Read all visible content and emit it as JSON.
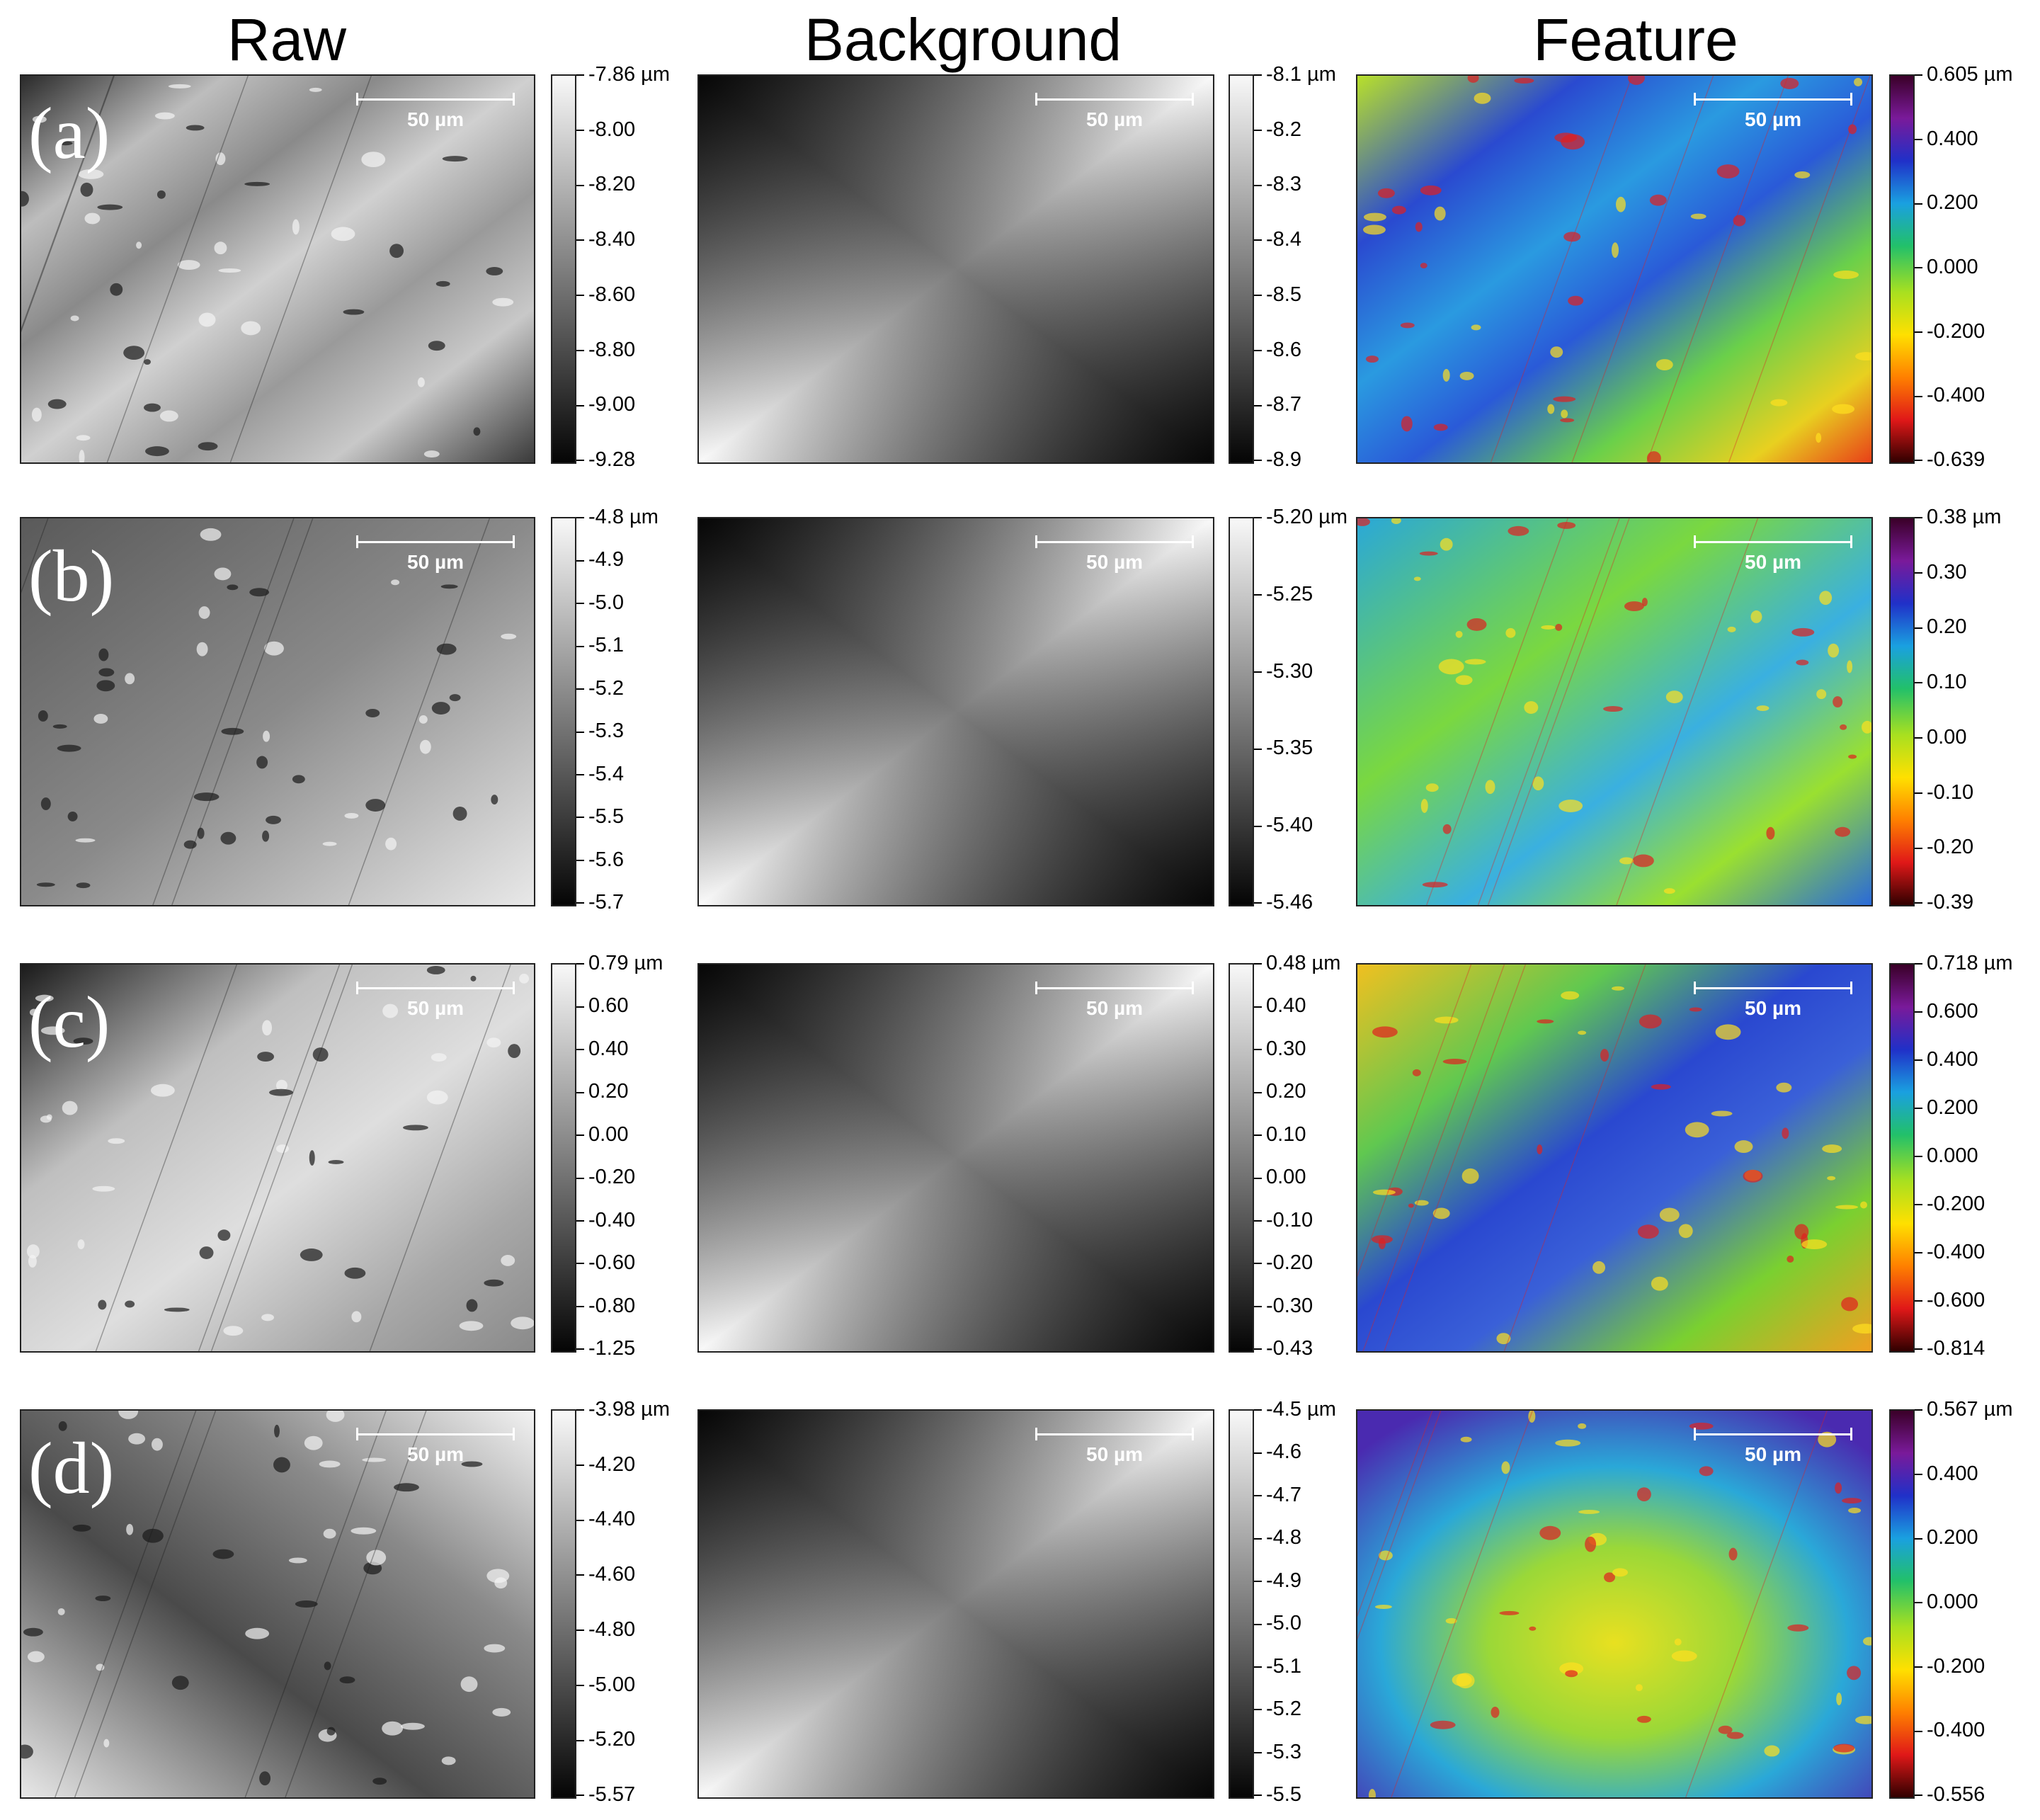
{
  "headers": [
    "Raw",
    "Background",
    "Feature"
  ],
  "scale_bar": "50 µm",
  "rows": [
    {
      "label": "(a)",
      "raw_ticks": [
        "-7.86 µm",
        "-8.00",
        "-8.20",
        "-8.40",
        "-8.60",
        "-8.80",
        "-9.00",
        "-9.28"
      ],
      "bg_ticks": [
        "-8.1 µm",
        "-8.2",
        "-8.3",
        "-8.4",
        "-8.5",
        "-8.6",
        "-8.7",
        "-8.9"
      ],
      "feat_ticks": [
        "0.605 µm",
        "0.400",
        "0.200",
        "0.000",
        "-0.200",
        "-0.400",
        "-0.639"
      ]
    },
    {
      "label": "(b)",
      "raw_ticks": [
        "-4.8 µm",
        "-4.9",
        "-5.0",
        "-5.1",
        "-5.2",
        "-5.3",
        "-5.4",
        "-5.5",
        "-5.6",
        "-5.7"
      ],
      "bg_ticks": [
        "-5.20 µm",
        "-5.25",
        "-5.30",
        "-5.35",
        "-5.40",
        "-5.46"
      ],
      "feat_ticks": [
        "0.38 µm",
        "0.30",
        "0.20",
        "0.10",
        "0.00",
        "-0.10",
        "-0.20",
        "-0.39"
      ]
    },
    {
      "label": "(c)",
      "raw_ticks": [
        "0.79 µm",
        "0.60",
        "0.40",
        "0.20",
        "0.00",
        "-0.20",
        "-0.40",
        "-0.60",
        "-0.80",
        "-1.25"
      ],
      "bg_ticks": [
        "0.48 µm",
        "0.40",
        "0.30",
        "0.20",
        "0.10",
        "0.00",
        "-0.10",
        "-0.20",
        "-0.30",
        "-0.43"
      ],
      "feat_ticks": [
        "0.718 µm",
        "0.600",
        "0.400",
        "0.200",
        "0.000",
        "-0.200",
        "-0.400",
        "-0.600",
        "-0.814"
      ]
    },
    {
      "label": "(d)",
      "raw_ticks": [
        "-3.98 µm",
        "-4.20",
        "-4.40",
        "-4.60",
        "-4.80",
        "-5.00",
        "-5.20",
        "-5.57"
      ],
      "bg_ticks": [
        "-4.5 µm",
        "-4.6",
        "-4.7",
        "-4.8",
        "-4.9",
        "-5.0",
        "-5.1",
        "-5.2",
        "-5.3",
        "-5.5"
      ],
      "feat_ticks": [
        "0.567 µm",
        "0.400",
        "0.200",
        "0.000",
        "-0.200",
        "-0.400",
        "-0.556"
      ]
    }
  ],
  "colors": {
    "feature_colormap": [
      "#3a0028",
      "#7a1a9a",
      "#2030c8",
      "#1aa0e0",
      "#22c06a",
      "#a8e020",
      "#ffe000",
      "#ff8000",
      "#e01818",
      "#300000"
    ],
    "gray_light": "#f8f8f8",
    "gray_dark": "#050505"
  }
}
